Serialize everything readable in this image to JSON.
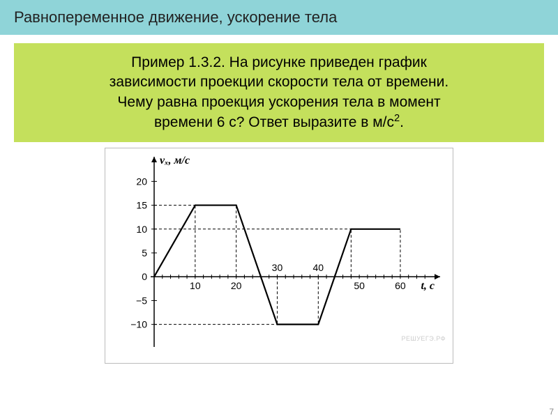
{
  "header": {
    "title": "Равнопеременное движение, ускорение тела"
  },
  "problem": {
    "text_line1": "Пример 1.3.2. На рисунке приведен график",
    "text_line2": "зависимости проекции скорости тела от времени.",
    "text_line3": "Чему равна проекция ускорения тела в момент",
    "text_line4_prefix": "времени 6 с? Ответ выразите в м/с",
    "text_line4_sup": "2",
    "text_line4_suffix": "."
  },
  "chart": {
    "type": "line",
    "background_color": "#ffffff",
    "border_color": "#bbbbbb",
    "axis_color": "#000000",
    "line_color": "#000000",
    "dashed_color": "#000000",
    "y_label": "vₓ, м/с",
    "x_label": "t, с",
    "y_ticks": [
      -10,
      -5,
      0,
      5,
      10,
      15,
      20
    ],
    "y_tick_labels": [
      "−10",
      "−5",
      "0",
      "5",
      "10",
      "15",
      "20"
    ],
    "x_ticks": [
      10,
      20,
      30,
      40,
      50,
      60
    ],
    "x_tick_labels": [
      "10",
      "20",
      "30",
      "40",
      "50",
      "60"
    ],
    "xlim": [
      0,
      68
    ],
    "ylim": [
      -14,
      24
    ],
    "line_width": 2.2,
    "tick_fontsize": 14,
    "label_fontsize": 16,
    "data_points": [
      {
        "t": 0,
        "v": 0
      },
      {
        "t": 10,
        "v": 15
      },
      {
        "t": 20,
        "v": 15
      },
      {
        "t": 30,
        "v": -10
      },
      {
        "t": 40,
        "v": -10
      },
      {
        "t": 48,
        "v": 10
      },
      {
        "t": 60,
        "v": 10
      }
    ],
    "v_dashed_lines": [
      {
        "t": 10,
        "from_v": 0,
        "to_v": 15
      },
      {
        "t": 20,
        "from_v": 0,
        "to_v": 15
      },
      {
        "t": 30,
        "from_v": 0,
        "to_v": -10
      },
      {
        "t": 40,
        "from_v": 0,
        "to_v": -10
      },
      {
        "t": 48,
        "from_v": 0,
        "to_v": 10
      },
      {
        "t": 60,
        "from_v": 0,
        "to_v": 10
      }
    ],
    "h_dashed_lines": [
      {
        "v": 15,
        "from_t": 0,
        "to_t": 10
      },
      {
        "v": -10,
        "from_t": 0,
        "to_t": 30
      },
      {
        "v": 10,
        "from_t": 0,
        "to_t": 48
      }
    ],
    "watermark": "РЕШУЕГЭ.РФ"
  },
  "page_number": "7",
  "colors": {
    "header_bg": "#8fd4d8",
    "problem_bg": "#c4e05c"
  }
}
